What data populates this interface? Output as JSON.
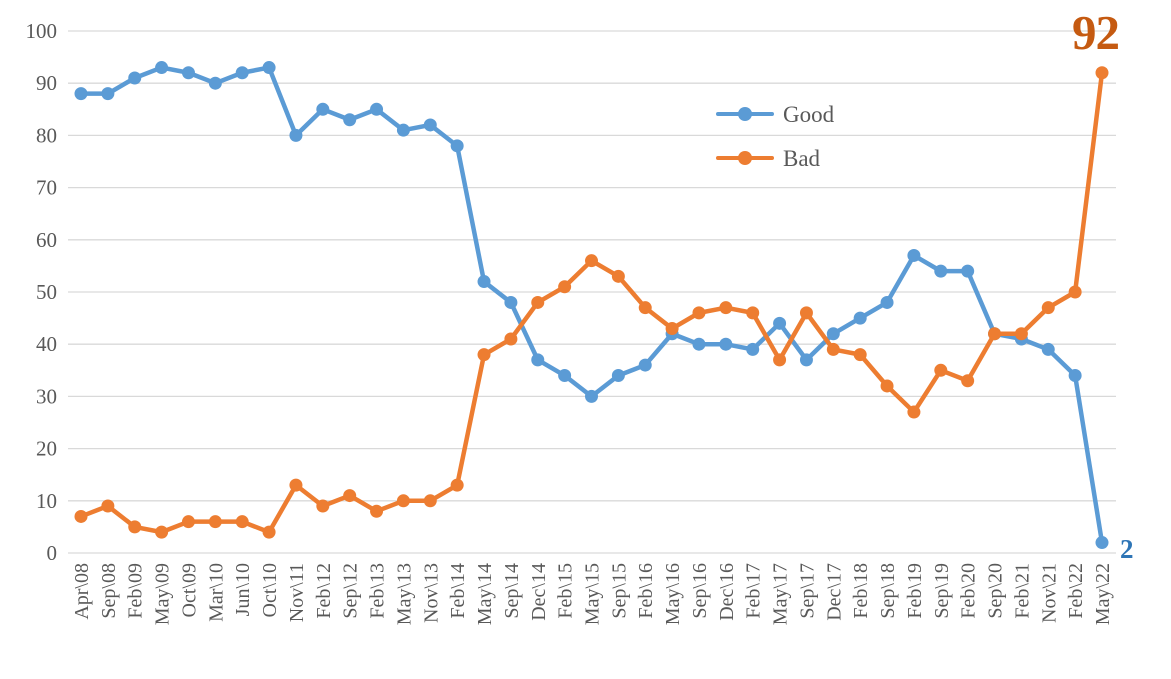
{
  "chart_data": {
    "type": "line",
    "title": "",
    "xlabel": "",
    "ylabel": "",
    "categories": [
      "Apr\\08",
      "Sep\\08",
      "Feb\\09",
      "May\\09",
      "Oct\\09",
      "Mar\\10",
      "Jun\\10",
      "Oct\\10",
      "Nov\\11",
      "Feb\\12",
      "Sep\\12",
      "Feb\\13",
      "May\\13",
      "Nov\\13",
      "Feb\\14",
      "May\\14",
      "Sep\\14",
      "Dec\\14",
      "Feb\\15",
      "May\\15",
      "Sep\\15",
      "Feb\\16",
      "May\\16",
      "Sep\\16",
      "Dec\\16",
      "Feb\\17",
      "May\\17",
      "Sep\\17",
      "Dec\\17",
      "Feb\\18",
      "Sep\\18",
      "Feb\\19",
      "Sep\\19",
      "Feb\\20",
      "Sep\\20",
      "Feb\\21",
      "Nov\\21",
      "Feb\\22",
      "May\\22"
    ],
    "series": [
      {
        "name": "Good",
        "color": "#5B9BD5",
        "values": [
          88,
          88,
          91,
          93,
          92,
          90,
          92,
          93,
          80,
          85,
          83,
          85,
          81,
          82,
          78,
          52,
          48,
          37,
          34,
          30,
          34,
          36,
          42,
          40,
          40,
          39,
          44,
          37,
          42,
          45,
          48,
          57,
          54,
          54,
          42,
          41,
          39,
          34,
          2
        ],
        "end_label": "2",
        "end_label_color": "#2E75B6"
      },
      {
        "name": "Bad",
        "color": "#ED7D31",
        "values": [
          7,
          9,
          5,
          4,
          6,
          6,
          6,
          4,
          13,
          9,
          11,
          8,
          10,
          10,
          13,
          38,
          41,
          48,
          51,
          56,
          53,
          47,
          43,
          46,
          47,
          46,
          37,
          46,
          39,
          38,
          32,
          27,
          35,
          33,
          42,
          42,
          47,
          50,
          92
        ],
        "end_label": "92",
        "end_label_color": "#C55A11"
      }
    ],
    "y_axis": {
      "min": 0,
      "max": 100,
      "step": 10,
      "tick_labels": [
        "0",
        "10",
        "20",
        "30",
        "40",
        "50",
        "60",
        "70",
        "80",
        "90",
        "100"
      ]
    },
    "grid": true,
    "legend_position": "inside-upper-middle",
    "axis_text_color": "#595959",
    "gridline_color": "#D9D9D9"
  }
}
